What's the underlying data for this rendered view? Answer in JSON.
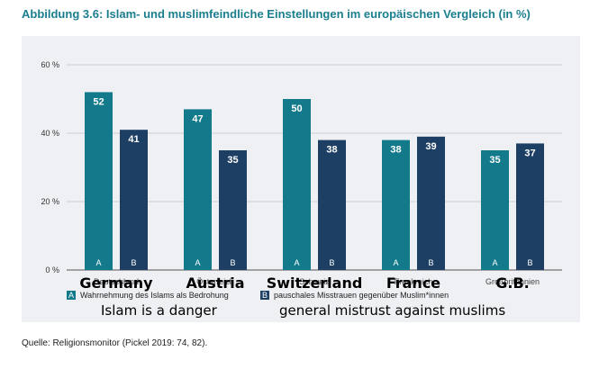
{
  "title": "Abbildung 3.6: Islam- und muslimfeindliche Einstellungen im europäischen Vergleich (in %)",
  "source": "Quelle: Religionsmonitor (Pickel 2019: 74, 82).",
  "colors": {
    "series_a": "#137a8b",
    "series_b": "#1d3f63",
    "title": "#1a7e8f",
    "background": "#eef0f4"
  },
  "chart_data": {
    "type": "bar",
    "title": "Abbildung 3.6: Islam- und muslimfeindliche Einstellungen im europäischen Vergleich (in %)",
    "categories": [
      "Deutschland",
      "Österreich",
      "Schweiz",
      "Frankreich",
      "Großbritannien"
    ],
    "overlay_labels": [
      "Germany",
      "Austria",
      "Switzerland",
      "France",
      "G.B."
    ],
    "series": [
      {
        "name": "Wahrnehmung des Islams als Bedrohung",
        "marker": "A",
        "values": [
          52,
          47,
          50,
          38,
          35
        ]
      },
      {
        "name": "pauschales Misstrauen gegenüber Muslim*innen",
        "marker": "B",
        "values": [
          41,
          35,
          38,
          39,
          37
        ]
      }
    ],
    "yticks": [
      "0 %",
      "20 %",
      "40 %",
      "60 %"
    ],
    "ylim": [
      0,
      60
    ],
    "grid": true,
    "legend_position": "bottom-left"
  },
  "annotations": {
    "series_a": "Islam is a danger",
    "series_b": "general mistrust against muslims"
  }
}
